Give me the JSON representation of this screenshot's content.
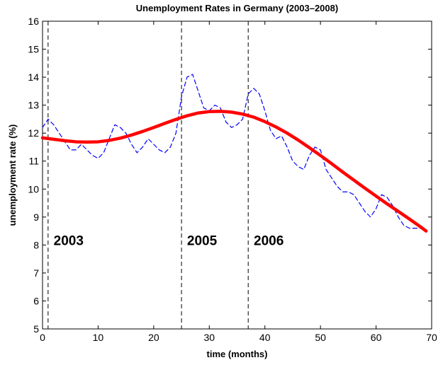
{
  "chart_data": {
    "type": "line",
    "title": "Unemployment Rates in Germany (2003–2008)",
    "xlabel": "time (months)",
    "ylabel": "unemployment rate (%)",
    "xlim": [
      0,
      70
    ],
    "ylim": [
      5,
      16
    ],
    "xticks": [
      0,
      10,
      20,
      30,
      40,
      50,
      60,
      70
    ],
    "yticks": [
      5,
      6,
      7,
      8,
      9,
      10,
      11,
      12,
      13,
      14,
      15,
      16
    ],
    "grid": false,
    "legend": "none",
    "series": [
      {
        "style": "dashed",
        "color": "#0000ff",
        "x": [
          0,
          1,
          2,
          3,
          4,
          5,
          6,
          7,
          8,
          9,
          10,
          11,
          12,
          13,
          14,
          15,
          16,
          17,
          18,
          19,
          20,
          21,
          22,
          23,
          24,
          25,
          26,
          27,
          28,
          29,
          30,
          31,
          32,
          33,
          34,
          35,
          36,
          37,
          38,
          39,
          40,
          41,
          42,
          43,
          44,
          45,
          46,
          47,
          48,
          49,
          50,
          51,
          52,
          53,
          54,
          55,
          56,
          57,
          58,
          59,
          60,
          61,
          62,
          63,
          64,
          65,
          66,
          67,
          68,
          69
        ],
        "y": [
          12.2,
          12.5,
          12.3,
          12.0,
          11.7,
          11.4,
          11.4,
          11.6,
          11.4,
          11.2,
          11.1,
          11.3,
          11.8,
          12.3,
          12.2,
          12.0,
          11.6,
          11.3,
          11.5,
          11.8,
          11.6,
          11.4,
          11.3,
          11.5,
          12.0,
          13.3,
          14.0,
          14.1,
          13.5,
          12.9,
          12.8,
          13.0,
          12.9,
          12.4,
          12.2,
          12.3,
          12.5,
          13.4,
          13.6,
          13.4,
          12.8,
          12.1,
          11.8,
          11.9,
          11.5,
          11.0,
          10.8,
          10.7,
          11.2,
          11.5,
          11.4,
          10.7,
          10.4,
          10.1,
          9.9,
          9.9,
          9.8,
          9.5,
          9.2,
          9.0,
          9.3,
          9.8,
          9.7,
          9.4,
          9.0,
          8.7,
          8.6,
          8.6,
          8.6,
          8.5
        ]
      },
      {
        "style": "solid",
        "color": "#ff0000",
        "x": [
          0,
          2,
          4,
          6,
          8,
          10,
          12,
          14,
          16,
          18,
          20,
          22,
          24,
          26,
          28,
          30,
          32,
          34,
          36,
          38,
          40,
          42,
          44,
          46,
          48,
          50,
          52,
          54,
          56,
          58,
          60,
          62,
          64,
          66,
          68,
          69
        ],
        "y": [
          11.83,
          11.78,
          11.73,
          11.69,
          11.68,
          11.69,
          11.74,
          11.82,
          11.93,
          12.06,
          12.2,
          12.35,
          12.49,
          12.62,
          12.72,
          12.77,
          12.78,
          12.75,
          12.68,
          12.57,
          12.41,
          12.22,
          12.0,
          11.75,
          11.48,
          11.2,
          10.91,
          10.61,
          10.32,
          10.03,
          9.75,
          9.47,
          9.2,
          8.93,
          8.65,
          8.5
        ]
      }
    ],
    "vlines": [
      1,
      25,
      37
    ],
    "annotations": [
      {
        "text": "2003",
        "x": 2,
        "y": 8.0
      },
      {
        "text": "2005",
        "x": 26,
        "y": 8.0
      },
      {
        "text": "2006",
        "x": 38,
        "y": 8.0
      }
    ]
  }
}
